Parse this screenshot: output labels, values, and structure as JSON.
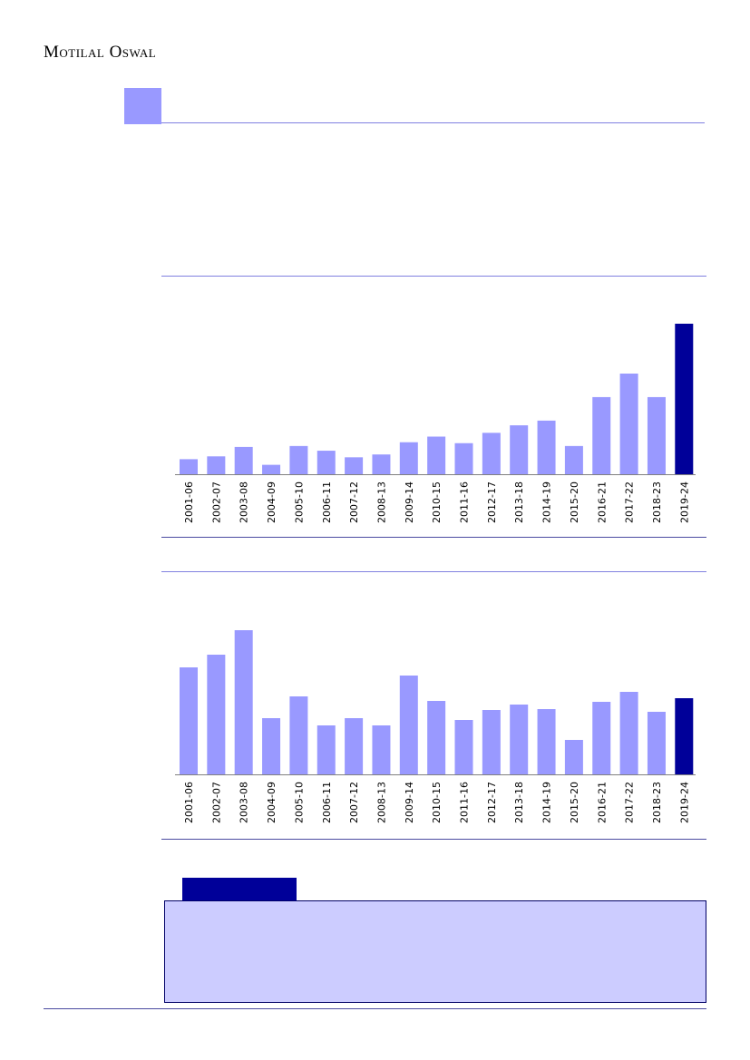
{
  "header": {
    "brand": "Motilal Oswal"
  },
  "colors": {
    "bar": "#9999ff",
    "highlight": "#000099",
    "rule": "#8080e0"
  },
  "chart_data": [
    {
      "type": "bar",
      "categories": [
        "2001-06",
        "2002-07",
        "2003-08",
        "2004-09",
        "2005-10",
        "2006-11",
        "2007-12",
        "2008-13",
        "2009-14",
        "2010-15",
        "2011-16",
        "2012-17",
        "2013-18",
        "2014-19",
        "2015-20",
        "2016-21",
        "2017-22",
        "2018-23",
        "2019-24"
      ],
      "values": [
        16,
        19,
        29,
        10,
        30,
        25,
        18,
        21,
        34,
        40,
        33,
        44,
        52,
        57,
        30,
        82,
        107,
        82,
        160
      ],
      "highlight_last": true,
      "title": "",
      "xlabel": "",
      "ylabel": "",
      "ylim": [
        0,
        160
      ]
    },
    {
      "type": "bar",
      "categories": [
        "2001-06",
        "2002-07",
        "2003-08",
        "2004-09",
        "2005-10",
        "2006-11",
        "2007-12",
        "2008-13",
        "2009-14",
        "2010-15",
        "2011-16",
        "2012-17",
        "2013-18",
        "2014-19",
        "2015-20",
        "2016-21",
        "2017-22",
        "2018-23",
        "2019-24"
      ],
      "values": [
        118,
        132,
        159,
        62,
        86,
        54,
        62,
        54,
        109,
        81,
        60,
        71,
        77,
        72,
        38,
        80,
        91,
        69,
        84
      ],
      "highlight_last": true,
      "title": "",
      "xlabel": "",
      "ylabel": "",
      "ylim": [
        0,
        159
      ]
    }
  ]
}
